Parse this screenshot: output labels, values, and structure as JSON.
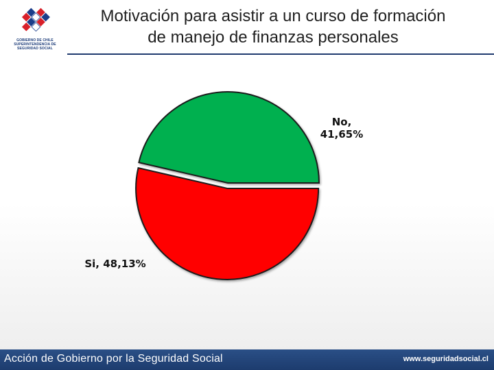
{
  "header": {
    "title_line1": "Motivación para asistir a un curso de formación",
    "title_line2": "de manejo de finanzas personales",
    "logo_text": [
      "GOBIERNO DE CHILE",
      "SUPERINTENDENCIA DE",
      "SEGURIDAD SOCIAL"
    ]
  },
  "chart_data": {
    "type": "pie",
    "title": "Motivación para asistir a un curso de formación de manejo de finanzas personales",
    "slices": [
      {
        "label": "No",
        "value": 41.65,
        "display": "41,65%",
        "color": "#00b04f"
      },
      {
        "label": "Si",
        "value": 48.13,
        "display": "48,13%",
        "color": "#ff0000"
      }
    ],
    "exploded": "Si"
  },
  "footer": {
    "left_text": "Acción de Gobierno por la Seguridad Social",
    "right_text": "www.seguridadsocial.cl"
  }
}
